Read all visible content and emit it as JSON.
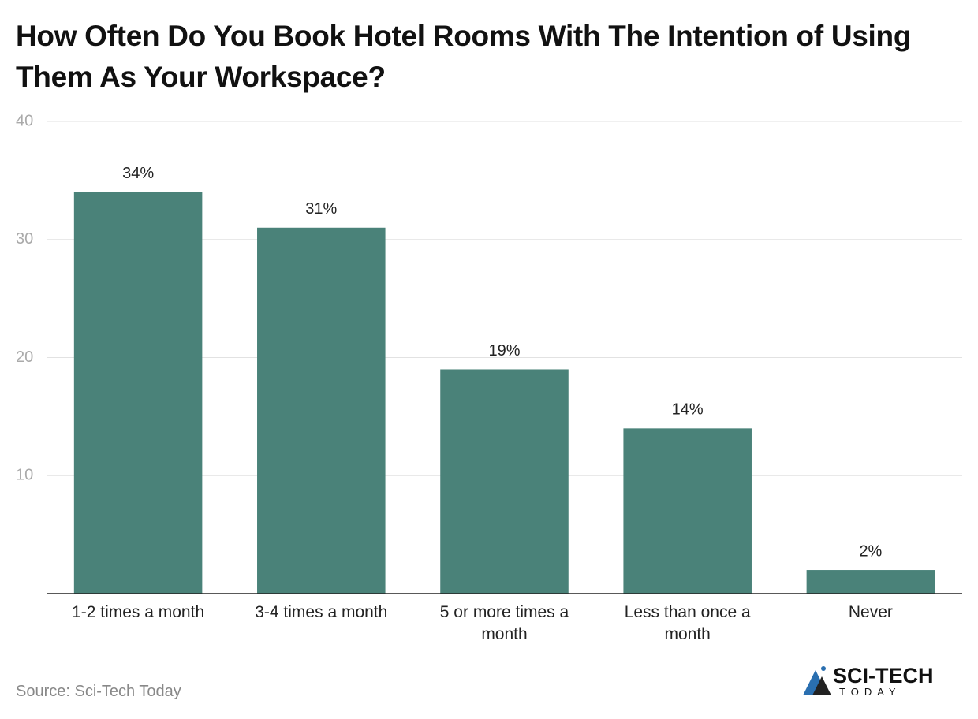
{
  "chart_data": {
    "type": "bar",
    "title": "How Often Do You Book Hotel Rooms With The Intention of Using Them As Your Workspace?",
    "categories": [
      "1-2 times a month",
      "3-4 times a month",
      "5 or more times a month",
      "Less than once a month",
      "Never"
    ],
    "values": [
      34,
      31,
      19,
      14,
      2
    ],
    "value_labels": [
      "34%",
      "31%",
      "19%",
      "14%",
      "2%"
    ],
    "color": "#4a8279",
    "ylim": [
      0,
      40
    ],
    "yticks": [
      10,
      20,
      30,
      40
    ],
    "grid": true,
    "source": "Source: Sci-Tech Today",
    "logo": {
      "name": "SCI-TECH",
      "tagline": "TODAY"
    }
  }
}
